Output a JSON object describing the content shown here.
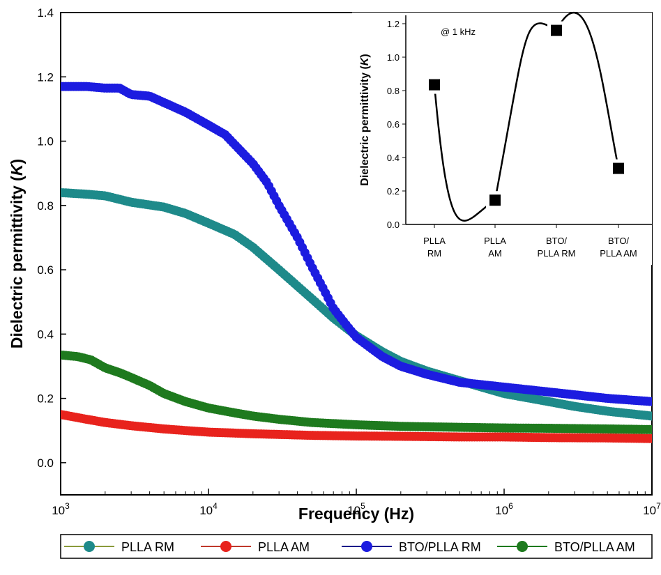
{
  "chart_data": [
    {
      "type": "scatter",
      "xlabel": "Frequency (Hz)",
      "ylabel": "Dielectric permittivity (K)",
      "ylabel_main": "Dielectric permittivity (",
      "ylabel_italic": "K",
      "ylabel_close": ")",
      "xscale": "log",
      "xlim": [
        1000,
        10000000
      ],
      "ylim": [
        -0.1,
        1.4
      ],
      "xticks": [
        {
          "value": 1000,
          "base": "10",
          "exp": "3"
        },
        {
          "value": 10000,
          "base": "10",
          "exp": "4"
        },
        {
          "value": 100000,
          "base": "10",
          "exp": "5"
        },
        {
          "value": 1000000,
          "base": "10",
          "exp": "6"
        },
        {
          "value": 10000000,
          "base": "10",
          "exp": "7"
        }
      ],
      "yticks": [
        {
          "value": 0.0,
          "label": "0.0"
        },
        {
          "value": 0.2,
          "label": "0.2"
        },
        {
          "value": 0.4,
          "label": "0.4"
        },
        {
          "value": 0.6,
          "label": "0.6"
        },
        {
          "value": 0.8,
          "label": "0.8"
        },
        {
          "value": 1.0,
          "label": "1.0"
        },
        {
          "value": 1.2,
          "label": "1.2"
        },
        {
          "value": 1.4,
          "label": "1.4"
        }
      ],
      "grid": false,
      "legend_position": "bottom",
      "series": [
        {
          "name": "PLLA RM",
          "color": "#1e8a8a",
          "line_color": "#8a9a3a",
          "x": [
            1000,
            1500,
            2000,
            3000,
            5000,
            7000,
            10000,
            15000,
            20000,
            30000,
            50000,
            70000,
            100000,
            150000,
            200000,
            300000,
            500000,
            1000000,
            2000000,
            3000000,
            5000000,
            10000000
          ],
          "y": [
            0.84,
            0.835,
            0.83,
            0.81,
            0.795,
            0.775,
            0.745,
            0.71,
            0.67,
            0.6,
            0.51,
            0.45,
            0.395,
            0.345,
            0.315,
            0.285,
            0.255,
            0.215,
            0.19,
            0.175,
            0.16,
            0.145
          ]
        },
        {
          "name": "PLLA AM",
          "color": "#e8231d",
          "line_color": "#c0392b",
          "x": [
            1000,
            1500,
            2000,
            3000,
            5000,
            7000,
            10000,
            20000,
            50000,
            100000,
            200000,
            500000,
            1000000,
            2000000,
            5000000,
            10000000
          ],
          "y": [
            0.15,
            0.135,
            0.125,
            0.115,
            0.105,
            0.1,
            0.095,
            0.09,
            0.085,
            0.083,
            0.082,
            0.08,
            0.08,
            0.078,
            0.077,
            0.075
          ]
        },
        {
          "name": "BTO/PLLA RM",
          "color": "#1c1ce0",
          "line_color": "#1a1a8a",
          "x": [
            1000,
            1500,
            2000,
            2500,
            3000,
            4000,
            5000,
            7000,
            10000,
            13000,
            15000,
            20000,
            25000,
            30000,
            40000,
            50000,
            60000,
            70000,
            85000,
            100000,
            150000,
            200000,
            300000,
            500000,
            1000000,
            2000000,
            5000000,
            10000000
          ],
          "y": [
            1.17,
            1.17,
            1.165,
            1.165,
            1.145,
            1.14,
            1.12,
            1.09,
            1.05,
            1.02,
            0.99,
            0.93,
            0.87,
            0.8,
            0.7,
            0.61,
            0.54,
            0.48,
            0.43,
            0.39,
            0.33,
            0.3,
            0.275,
            0.25,
            0.235,
            0.22,
            0.2,
            0.19
          ]
        },
        {
          "name": "BTO/PLLA AM",
          "color": "#1e7a1e",
          "line_color": "#1e7a1e",
          "x": [
            1000,
            1300,
            1600,
            2000,
            2500,
            3000,
            4000,
            5000,
            7000,
            10000,
            15000,
            20000,
            30000,
            50000,
            100000,
            200000,
            500000,
            1000000,
            2000000,
            5000000,
            10000000
          ],
          "y": [
            0.335,
            0.33,
            0.32,
            0.295,
            0.28,
            0.265,
            0.24,
            0.215,
            0.19,
            0.17,
            0.155,
            0.145,
            0.135,
            0.125,
            0.118,
            0.113,
            0.11,
            0.108,
            0.107,
            0.105,
            0.103
          ]
        }
      ]
    },
    {
      "type": "scatter",
      "annotation": "@ 1 kHz",
      "ylabel": "Dielectric permittivity (K)",
      "ylabel_main": "Dielectric permittivity (",
      "ylabel_italic": "K",
      "ylabel_close": ")",
      "ylim": [
        0.0,
        1.25
      ],
      "yticks": [
        {
          "value": 0.0,
          "label": "0.0"
        },
        {
          "value": 0.2,
          "label": "0.2"
        },
        {
          "value": 0.4,
          "label": "0.4"
        },
        {
          "value": 0.6,
          "label": "0.6"
        },
        {
          "value": 0.8,
          "label": "0.8"
        },
        {
          "value": 1.0,
          "label": "1.0"
        },
        {
          "value": 1.2,
          "label": "1.2"
        }
      ],
      "categories": [
        {
          "line1": "PLLA",
          "line2": "RM"
        },
        {
          "line1": "PLLA",
          "line2": "AM"
        },
        {
          "line1": "BTO/",
          "line2": "PLLA RM"
        },
        {
          "line1": "BTO/",
          "line2": "PLLA AM"
        }
      ],
      "values": [
        0.835,
        0.145,
        1.16,
        0.335
      ],
      "smooth_curve": true
    }
  ]
}
